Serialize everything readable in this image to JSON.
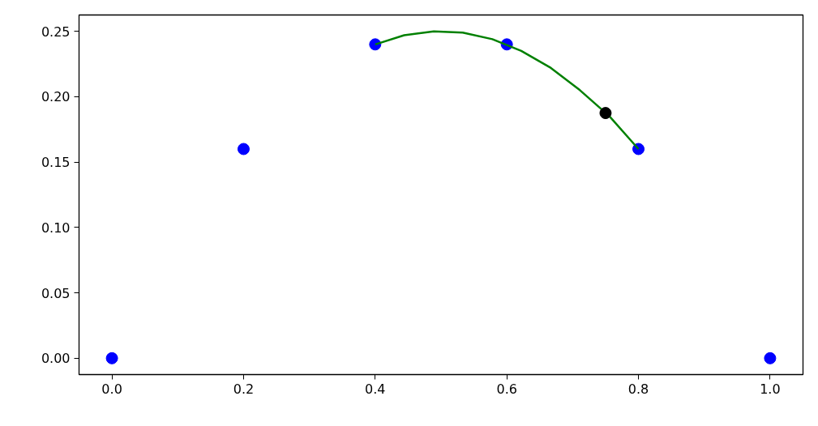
{
  "chart_data": {
    "type": "scatter",
    "xlim": [
      -0.05,
      1.05
    ],
    "ylim": [
      -0.0125,
      0.2625
    ],
    "xticks": [
      {
        "value": 0,
        "label": "0.0"
      },
      {
        "value": 0.2,
        "label": "0.2"
      },
      {
        "value": 0.4,
        "label": "0.4"
      },
      {
        "value": 0.6,
        "label": "0.6"
      },
      {
        "value": 0.8,
        "label": "0.8"
      },
      {
        "value": 1,
        "label": "1.0"
      }
    ],
    "yticks": [
      {
        "value": 0,
        "label": "0.00"
      },
      {
        "value": 0.05,
        "label": "0.05"
      },
      {
        "value": 0.1,
        "label": "0.10"
      },
      {
        "value": 0.15,
        "label": "0.15"
      },
      {
        "value": 0.2,
        "label": "0.20"
      },
      {
        "value": 0.25,
        "label": "0.25"
      }
    ],
    "grid": false,
    "series": [
      {
        "marker": "circle",
        "color": "#0000ff",
        "x": [
          0,
          0.2,
          0.4,
          0.6,
          0.8,
          1.0
        ],
        "values": [
          0,
          0.16,
          0.24,
          0.24,
          0.16,
          0
        ]
      },
      {
        "type": "line",
        "marker": "none",
        "line_style": "solid",
        "color": "#008000",
        "x": [
          0.4,
          0.444,
          0.489,
          0.533,
          0.578,
          0.622,
          0.667,
          0.711,
          0.756,
          0.8
        ],
        "values": [
          0.24,
          0.247,
          0.25,
          0.249,
          0.244,
          0.235,
          0.222,
          0.205,
          0.185,
          0.16
        ]
      },
      {
        "marker": "circle",
        "color": "#000000",
        "x": [
          0.75
        ],
        "values": [
          0.1875
        ]
      }
    ]
  }
}
